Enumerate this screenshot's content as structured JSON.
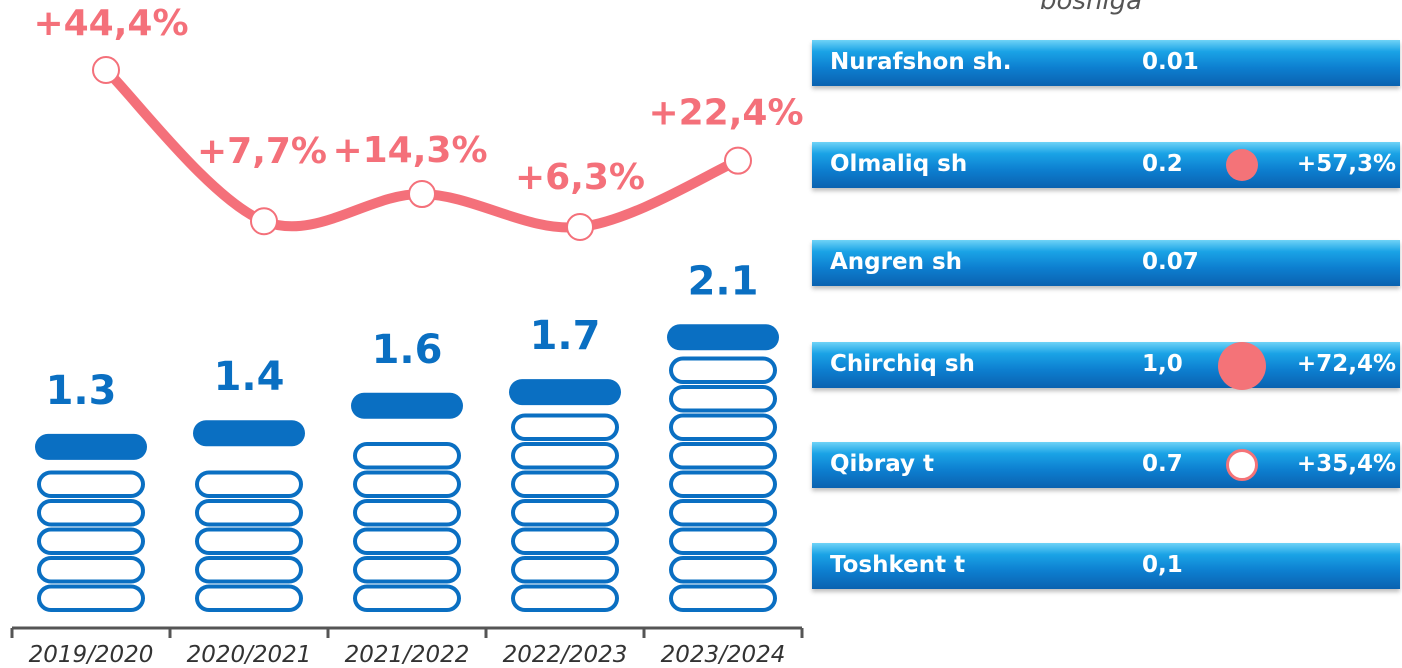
{
  "header": {
    "note": "boshiga"
  },
  "chart_data": [
    {
      "type": "bar",
      "categories": [
        "2019/2020",
        "2020/2021",
        "2021/2022",
        "2022/2023",
        "2023/2024"
      ],
      "values": [
        1.3,
        1.4,
        1.6,
        1.7,
        2.1
      ],
      "color": "#0a6fc2"
    },
    {
      "type": "line",
      "categories": [
        "2019/2020",
        "2020/2021",
        "2021/2022",
        "2022/2023",
        "2023/2024"
      ],
      "values": [
        44.4,
        7.7,
        14.3,
        6.3,
        22.4
      ],
      "value_labels": [
        "+44,4%",
        "+7,7%",
        "+14,3%",
        "+6,3%",
        "+22,4%"
      ],
      "color": "#f4707a"
    }
  ],
  "table": {
    "rows": [
      [
        "Nurafshon sh.",
        "0.01"
      ],
      [
        "Olmaliq sh",
        "0.2",
        "+57,3%"
      ],
      [
        "Angren sh",
        "0.07"
      ],
      [
        "Chirchiq sh",
        "1,0",
        "+72,4%"
      ],
      [
        "Qibray t",
        "0.7",
        "+35,4%"
      ],
      [
        "Toshkent t",
        "0,1"
      ]
    ]
  }
}
